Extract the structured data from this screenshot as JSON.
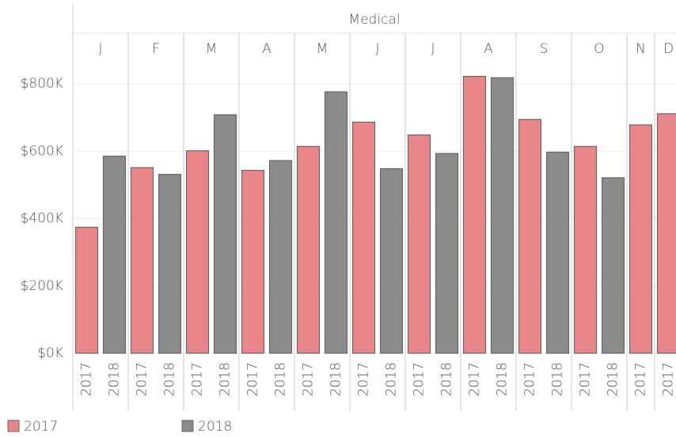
{
  "chart_data": {
    "type": "bar",
    "title": "Medical",
    "groups": [
      {
        "label": "J",
        "bars": [
          {
            "year": "2017",
            "value": 374000
          },
          {
            "year": "2018",
            "value": 585000
          }
        ]
      },
      {
        "label": "F",
        "bars": [
          {
            "year": "2017",
            "value": 551000
          },
          {
            "year": "2018",
            "value": 531000
          }
        ]
      },
      {
        "label": "M",
        "bars": [
          {
            "year": "2017",
            "value": 601000
          },
          {
            "year": "2018",
            "value": 708000
          }
        ]
      },
      {
        "label": "A",
        "bars": [
          {
            "year": "2017",
            "value": 543000
          },
          {
            "year": "2018",
            "value": 572000
          }
        ]
      },
      {
        "label": "M",
        "bars": [
          {
            "year": "2017",
            "value": 614000
          },
          {
            "year": "2018",
            "value": 776000
          }
        ]
      },
      {
        "label": "J",
        "bars": [
          {
            "year": "2017",
            "value": 686000
          },
          {
            "year": "2018",
            "value": 548000
          }
        ]
      },
      {
        "label": "J",
        "bars": [
          {
            "year": "2017",
            "value": 648000
          },
          {
            "year": "2018",
            "value": 593000
          }
        ]
      },
      {
        "label": "A",
        "bars": [
          {
            "year": "2017",
            "value": 822000
          },
          {
            "year": "2018",
            "value": 818000
          }
        ]
      },
      {
        "label": "S",
        "bars": [
          {
            "year": "2017",
            "value": 694000
          },
          {
            "year": "2018",
            "value": 597000
          }
        ]
      },
      {
        "label": "O",
        "bars": [
          {
            "year": "2017",
            "value": 614000
          },
          {
            "year": "2018",
            "value": 521000
          }
        ]
      },
      {
        "label": "N",
        "bars": [
          {
            "year": "2017",
            "value": 678000
          }
        ]
      },
      {
        "label": "D",
        "bars": [
          {
            "year": "2017",
            "value": 711000
          }
        ]
      }
    ],
    "series": [
      {
        "name": "2017",
        "color": "#e8868a"
      },
      {
        "name": "2018",
        "color": "#8a8c8c"
      }
    ],
    "ylim": [
      0,
      850000
    ],
    "yticks": [
      {
        "value": 0,
        "label": "$0K"
      },
      {
        "value": 200000,
        "label": "$200K"
      },
      {
        "value": 400000,
        "label": "$400K"
      },
      {
        "value": 600000,
        "label": "$600K"
      },
      {
        "value": 800000,
        "label": "$800K"
      }
    ],
    "grid": true
  }
}
